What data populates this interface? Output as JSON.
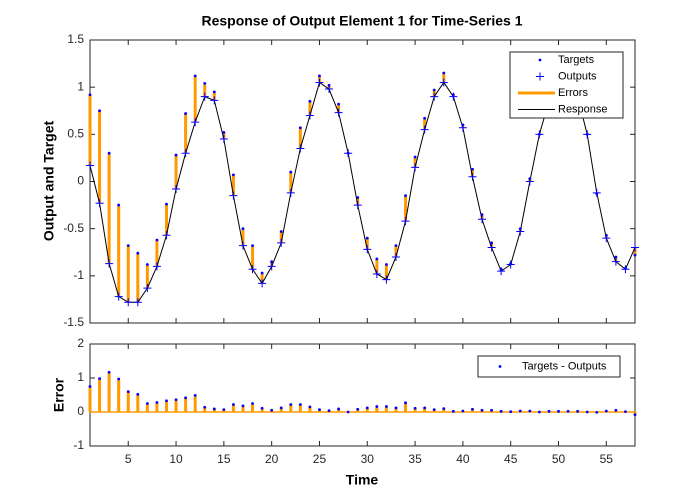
{
  "chart_data": [
    {
      "type": "response",
      "title": "Response of Output Element 1 for Time-Series 1",
      "ylabel": "Output and Target",
      "xlim": [
        1,
        58
      ],
      "xticks": [
        5,
        10,
        15,
        20,
        25,
        30,
        35,
        40,
        45,
        50,
        55
      ],
      "ylim": [
        -1.5,
        1.5
      ],
      "yticks": [
        -1.5,
        -1,
        -0.5,
        0,
        0.5,
        1,
        1.5
      ],
      "legend": "upper right",
      "x": [
        1,
        2,
        3,
        4,
        5,
        6,
        7,
        8,
        9,
        10,
        11,
        12,
        13,
        14,
        15,
        16,
        17,
        18,
        19,
        20,
        21,
        22,
        23,
        24,
        25,
        26,
        27,
        28,
        29,
        30,
        31,
        32,
        33,
        34,
        35,
        36,
        37,
        38,
        39,
        40,
        41,
        42,
        43,
        44,
        45,
        46,
        47,
        48,
        49,
        50,
        51,
        52,
        53,
        54,
        55,
        56,
        57,
        58
      ],
      "series": [
        {
          "name": "Targets",
          "color": "#0000ff",
          "values": [
            0.92,
            0.75,
            0.3,
            -0.25,
            -0.68,
            -0.76,
            -0.88,
            -0.62,
            -0.24,
            0.28,
            0.72,
            1.12,
            1.04,
            0.95,
            0.52,
            0.07,
            -0.5,
            -0.68,
            -0.97,
            -0.85,
            -0.53,
            0.1,
            0.57,
            0.85,
            1.12,
            1.02,
            0.82,
            0.3,
            -0.17,
            -0.6,
            -0.82,
            -0.88,
            -0.68,
            -0.15,
            0.26,
            0.67,
            0.97,
            1.15,
            0.92,
            0.6,
            0.13,
            -0.35,
            -0.65,
            -0.93,
            -0.87,
            -0.5,
            0.03,
            0.5,
            0.87,
            1.02,
            1.07,
            0.92,
            0.5,
            -0.13,
            -0.57,
            -0.8,
            -0.92,
            -0.78
          ]
        },
        {
          "name": "Outputs",
          "color": "#0000ff",
          "values": [
            0.17,
            -0.23,
            -0.87,
            -1.22,
            -1.28,
            -1.28,
            -1.13,
            -0.9,
            -0.57,
            -0.08,
            0.3,
            0.63,
            0.9,
            0.86,
            0.45,
            -0.15,
            -0.68,
            -0.93,
            -1.08,
            -0.9,
            -0.65,
            -0.12,
            0.35,
            0.7,
            1.05,
            0.98,
            0.73,
            0.3,
            -0.25,
            -0.72,
            -0.98,
            -1.04,
            -0.8,
            -0.42,
            0.15,
            0.55,
            0.9,
            1.05,
            0.9,
            0.57,
            0.05,
            -0.4,
            -0.7,
            -0.95,
            -0.88,
            -0.53,
            0,
            0.5,
            0.85,
            1,
            1.05,
            0.9,
            0.5,
            -0.12,
            -0.6,
            -0.85,
            -0.93,
            -0.7
          ]
        },
        {
          "name": "Errors",
          "color": "#ff9900"
        },
        {
          "name": "Response",
          "color": "#000000"
        }
      ]
    },
    {
      "type": "stem",
      "ylabel": "Error",
      "xlabel": "Time",
      "xlim": [
        1,
        58
      ],
      "xticks": [
        5,
        10,
        15,
        20,
        25,
        30,
        35,
        40,
        45,
        50,
        55
      ],
      "ylim": [
        -1,
        2
      ],
      "yticks": [
        -1,
        0,
        1,
        2
      ],
      "legend": "upper right",
      "stem_color": "#ff9900",
      "x": [
        1,
        2,
        3,
        4,
        5,
        6,
        7,
        8,
        9,
        10,
        11,
        12,
        13,
        14,
        15,
        16,
        17,
        18,
        19,
        20,
        21,
        22,
        23,
        24,
        25,
        26,
        27,
        28,
        29,
        30,
        31,
        32,
        33,
        34,
        35,
        36,
        37,
        38,
        39,
        40,
        41,
        42,
        43,
        44,
        45,
        46,
        47,
        48,
        49,
        50,
        51,
        52,
        53,
        54,
        55,
        56,
        57,
        58
      ],
      "series": [
        {
          "name": "Targets - Outputs",
          "color": "#0000ff",
          "values": [
            0.75,
            0.98,
            1.17,
            0.97,
            0.6,
            0.52,
            0.25,
            0.28,
            0.33,
            0.36,
            0.42,
            0.49,
            0.14,
            0.09,
            0.07,
            0.22,
            0.18,
            0.25,
            0.11,
            0.05,
            0.12,
            0.22,
            0.22,
            0.15,
            0.07,
            0.04,
            0.09,
            0,
            0.08,
            0.12,
            0.16,
            0.16,
            0.12,
            0.27,
            0.11,
            0.12,
            0.07,
            0.1,
            0.02,
            0.03,
            0.08,
            0.05,
            0.05,
            0.02,
            0.01,
            0.03,
            0.03,
            0,
            0.02,
            0.02,
            0.02,
            0.02,
            0,
            -0.01,
            0.03,
            0.05,
            0.01,
            -0.08
          ]
        }
      ]
    }
  ]
}
